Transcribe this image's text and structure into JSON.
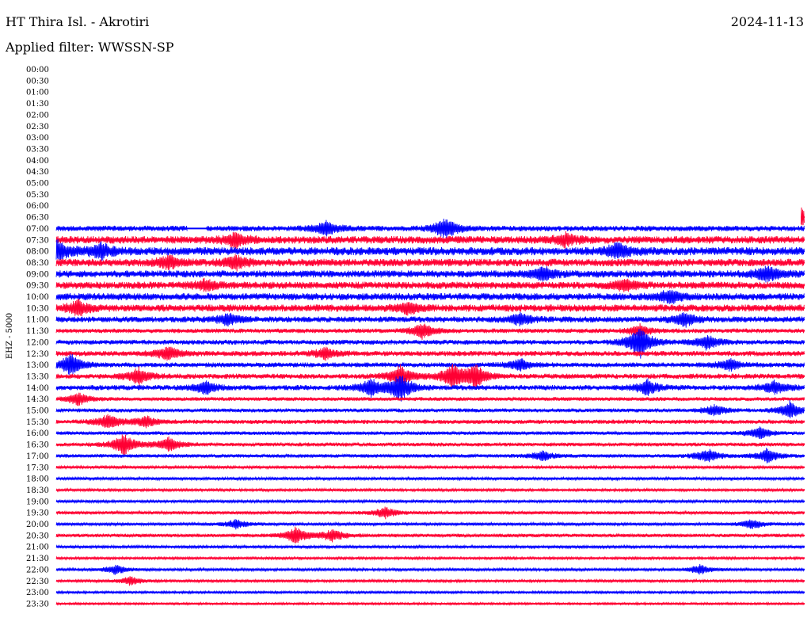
{
  "header": {
    "station": "HT Thira Isl. - Akrotiri",
    "filter": "Applied filter: WWSSN-SP",
    "date": "2024-11-13"
  },
  "chart_data": {
    "type": "helicorder",
    "title": "HT Thira Isl. - Akrotiri",
    "subtitle": "Applied filter: WWSSN-SP",
    "date": "2024-11-13",
    "ylabel": "EHZ - 5000",
    "xlabel": "",
    "row_interval_minutes": 30,
    "series_colors": [
      "#0000ff",
      "#ff0033"
    ],
    "rows": [
      {
        "time": "00:00",
        "has_data": false,
        "color": "#0000ff",
        "activity": 0
      },
      {
        "time": "00:30",
        "has_data": false,
        "color": "#ff0033",
        "activity": 0
      },
      {
        "time": "01:00",
        "has_data": false,
        "color": "#0000ff",
        "activity": 0
      },
      {
        "time": "01:30",
        "has_data": false,
        "color": "#ff0033",
        "activity": 0
      },
      {
        "time": "02:00",
        "has_data": false,
        "color": "#0000ff",
        "activity": 0
      },
      {
        "time": "02:30",
        "has_data": false,
        "color": "#ff0033",
        "activity": 0
      },
      {
        "time": "03:00",
        "has_data": false,
        "color": "#0000ff",
        "activity": 0
      },
      {
        "time": "03:30",
        "has_data": false,
        "color": "#ff0033",
        "activity": 0
      },
      {
        "time": "04:00",
        "has_data": false,
        "color": "#0000ff",
        "activity": 0
      },
      {
        "time": "04:30",
        "has_data": false,
        "color": "#ff0033",
        "activity": 0
      },
      {
        "time": "05:00",
        "has_data": false,
        "color": "#0000ff",
        "activity": 0
      },
      {
        "time": "05:30",
        "has_data": false,
        "color": "#ff0033",
        "activity": 0
      },
      {
        "time": "06:00",
        "has_data": false,
        "color": "#0000ff",
        "activity": 0
      },
      {
        "time": "06:30",
        "has_data": true,
        "color": "#ff0033",
        "activity": 0.6,
        "data_start": 0.995
      },
      {
        "time": "07:00",
        "has_data": true,
        "color": "#0000ff",
        "activity": 0.55,
        "gap": [
          0.175,
          0.2
        ]
      },
      {
        "time": "07:30",
        "has_data": true,
        "color": "#ff0033",
        "activity": 0.85
      },
      {
        "time": "08:00",
        "has_data": true,
        "color": "#0000ff",
        "activity": 0.95
      },
      {
        "time": "08:30",
        "has_data": true,
        "color": "#ff0033",
        "activity": 0.85
      },
      {
        "time": "09:00",
        "has_data": true,
        "color": "#0000ff",
        "activity": 0.8
      },
      {
        "time": "09:30",
        "has_data": true,
        "color": "#ff0033",
        "activity": 0.8
      },
      {
        "time": "10:00",
        "has_data": true,
        "color": "#0000ff",
        "activity": 0.8
      },
      {
        "time": "10:30",
        "has_data": true,
        "color": "#ff0033",
        "activity": 0.8
      },
      {
        "time": "11:00",
        "has_data": true,
        "color": "#0000ff",
        "activity": 0.6
      },
      {
        "time": "11:30",
        "has_data": true,
        "color": "#ff0033",
        "activity": 0.4
      },
      {
        "time": "12:00",
        "has_data": true,
        "color": "#0000ff",
        "activity": 0.45
      },
      {
        "time": "12:30",
        "has_data": true,
        "color": "#ff0033",
        "activity": 0.5
      },
      {
        "time": "13:00",
        "has_data": true,
        "color": "#0000ff",
        "activity": 0.45
      },
      {
        "time": "13:30",
        "has_data": true,
        "color": "#ff0033",
        "activity": 0.5
      },
      {
        "time": "14:00",
        "has_data": true,
        "color": "#0000ff",
        "activity": 0.5
      },
      {
        "time": "14:30",
        "has_data": true,
        "color": "#ff0033",
        "activity": 0.3
      },
      {
        "time": "15:00",
        "has_data": true,
        "color": "#0000ff",
        "activity": 0.3
      },
      {
        "time": "15:30",
        "has_data": true,
        "color": "#ff0033",
        "activity": 0.35
      },
      {
        "time": "16:00",
        "has_data": true,
        "color": "#0000ff",
        "activity": 0.25
      },
      {
        "time": "16:30",
        "has_data": true,
        "color": "#ff0033",
        "activity": 0.3
      },
      {
        "time": "17:00",
        "has_data": true,
        "color": "#0000ff",
        "activity": 0.25
      },
      {
        "time": "17:30",
        "has_data": true,
        "color": "#ff0033",
        "activity": 0.12
      },
      {
        "time": "18:00",
        "has_data": true,
        "color": "#0000ff",
        "activity": 0.15
      },
      {
        "time": "18:30",
        "has_data": true,
        "color": "#ff0033",
        "activity": 0.1
      },
      {
        "time": "19:00",
        "has_data": true,
        "color": "#0000ff",
        "activity": 0.12
      },
      {
        "time": "19:30",
        "has_data": true,
        "color": "#ff0033",
        "activity": 0.2
      },
      {
        "time": "20:00",
        "has_data": true,
        "color": "#0000ff",
        "activity": 0.15
      },
      {
        "time": "20:30",
        "has_data": true,
        "color": "#ff0033",
        "activity": 0.25
      },
      {
        "time": "21:00",
        "has_data": true,
        "color": "#0000ff",
        "activity": 0.12
      },
      {
        "time": "21:30",
        "has_data": true,
        "color": "#ff0033",
        "activity": 0.08
      },
      {
        "time": "22:00",
        "has_data": true,
        "color": "#0000ff",
        "activity": 0.12
      },
      {
        "time": "22:30",
        "has_data": true,
        "color": "#ff0033",
        "activity": 0.08
      },
      {
        "time": "23:00",
        "has_data": true,
        "color": "#0000ff",
        "activity": 0.05
      },
      {
        "time": "23:30",
        "has_data": true,
        "color": "#ff0033",
        "activity": 0.03
      }
    ],
    "events": [
      {
        "time": "06:30",
        "x": 0.995,
        "amp": 2.2
      },
      {
        "time": "07:00",
        "x": 0.36,
        "amp": 2.0
      },
      {
        "time": "07:00",
        "x": 0.52,
        "amp": 3.0
      },
      {
        "time": "07:30",
        "x": 0.24,
        "amp": 2.0
      },
      {
        "time": "07:30",
        "x": 0.68,
        "amp": 1.6
      },
      {
        "time": "08:00",
        "x": 0.0,
        "amp": 3.0
      },
      {
        "time": "08:00",
        "x": 0.06,
        "amp": 2.0
      },
      {
        "time": "08:00",
        "x": 0.75,
        "amp": 2.2
      },
      {
        "time": "08:30",
        "x": 0.15,
        "amp": 1.8
      },
      {
        "time": "08:30",
        "x": 0.24,
        "amp": 1.8
      },
      {
        "time": "09:00",
        "x": 0.65,
        "amp": 1.8
      },
      {
        "time": "09:00",
        "x": 0.95,
        "amp": 2.2
      },
      {
        "time": "09:30",
        "x": 0.2,
        "amp": 1.5
      },
      {
        "time": "09:30",
        "x": 0.76,
        "amp": 1.5
      },
      {
        "time": "10:00",
        "x": 0.82,
        "amp": 1.8
      },
      {
        "time": "10:30",
        "x": 0.03,
        "amp": 2.0
      },
      {
        "time": "10:30",
        "x": 0.47,
        "amp": 1.5
      },
      {
        "time": "11:00",
        "x": 0.23,
        "amp": 1.6
      },
      {
        "time": "11:00",
        "x": 0.62,
        "amp": 1.8
      },
      {
        "time": "11:00",
        "x": 0.84,
        "amp": 2.0
      },
      {
        "time": "11:30",
        "x": 0.49,
        "amp": 2.2
      },
      {
        "time": "11:30",
        "x": 0.78,
        "amp": 1.6
      },
      {
        "time": "12:00",
        "x": 0.78,
        "amp": 5.0
      },
      {
        "time": "12:00",
        "x": 0.87,
        "amp": 2.0
      },
      {
        "time": "12:30",
        "x": 0.15,
        "amp": 2.0
      },
      {
        "time": "12:30",
        "x": 0.36,
        "amp": 1.6
      },
      {
        "time": "13:00",
        "x": 0.02,
        "amp": 3.0
      },
      {
        "time": "13:00",
        "x": 0.62,
        "amp": 1.6
      },
      {
        "time": "13:00",
        "x": 0.9,
        "amp": 1.6
      },
      {
        "time": "13:30",
        "x": 0.11,
        "amp": 2.2
      },
      {
        "time": "13:30",
        "x": 0.46,
        "amp": 3.0
      },
      {
        "time": "13:30",
        "x": 0.53,
        "amp": 3.2
      },
      {
        "time": "13:30",
        "x": 0.56,
        "amp": 3.2
      },
      {
        "time": "14:00",
        "x": 0.42,
        "amp": 2.4
      },
      {
        "time": "14:00",
        "x": 0.46,
        "amp": 4.0
      },
      {
        "time": "14:00",
        "x": 0.2,
        "amp": 1.8
      },
      {
        "time": "14:00",
        "x": 0.79,
        "amp": 2.0
      },
      {
        "time": "14:00",
        "x": 0.96,
        "amp": 2.0
      },
      {
        "time": "14:30",
        "x": 0.03,
        "amp": 1.8
      },
      {
        "time": "15:00",
        "x": 0.88,
        "amp": 1.6
      },
      {
        "time": "15:00",
        "x": 0.98,
        "amp": 2.4
      },
      {
        "time": "15:30",
        "x": 0.07,
        "amp": 2.2
      },
      {
        "time": "15:30",
        "x": 0.12,
        "amp": 1.6
      },
      {
        "time": "16:00",
        "x": 0.94,
        "amp": 1.8
      },
      {
        "time": "16:30",
        "x": 0.09,
        "amp": 3.2
      },
      {
        "time": "16:30",
        "x": 0.15,
        "amp": 2.0
      },
      {
        "time": "17:00",
        "x": 0.65,
        "amp": 1.4
      },
      {
        "time": "17:00",
        "x": 0.87,
        "amp": 2.0
      },
      {
        "time": "17:00",
        "x": 0.95,
        "amp": 2.0
      },
      {
        "time": "19:30",
        "x": 0.44,
        "amp": 1.6
      },
      {
        "time": "20:00",
        "x": 0.24,
        "amp": 1.4
      },
      {
        "time": "20:00",
        "x": 0.93,
        "amp": 1.4
      },
      {
        "time": "20:30",
        "x": 0.32,
        "amp": 2.4
      },
      {
        "time": "20:30",
        "x": 0.37,
        "amp": 1.8
      },
      {
        "time": "22:00",
        "x": 0.08,
        "amp": 1.4
      },
      {
        "time": "22:00",
        "x": 0.86,
        "amp": 1.4
      },
      {
        "time": "22:30",
        "x": 0.1,
        "amp": 1.3
      }
    ]
  }
}
